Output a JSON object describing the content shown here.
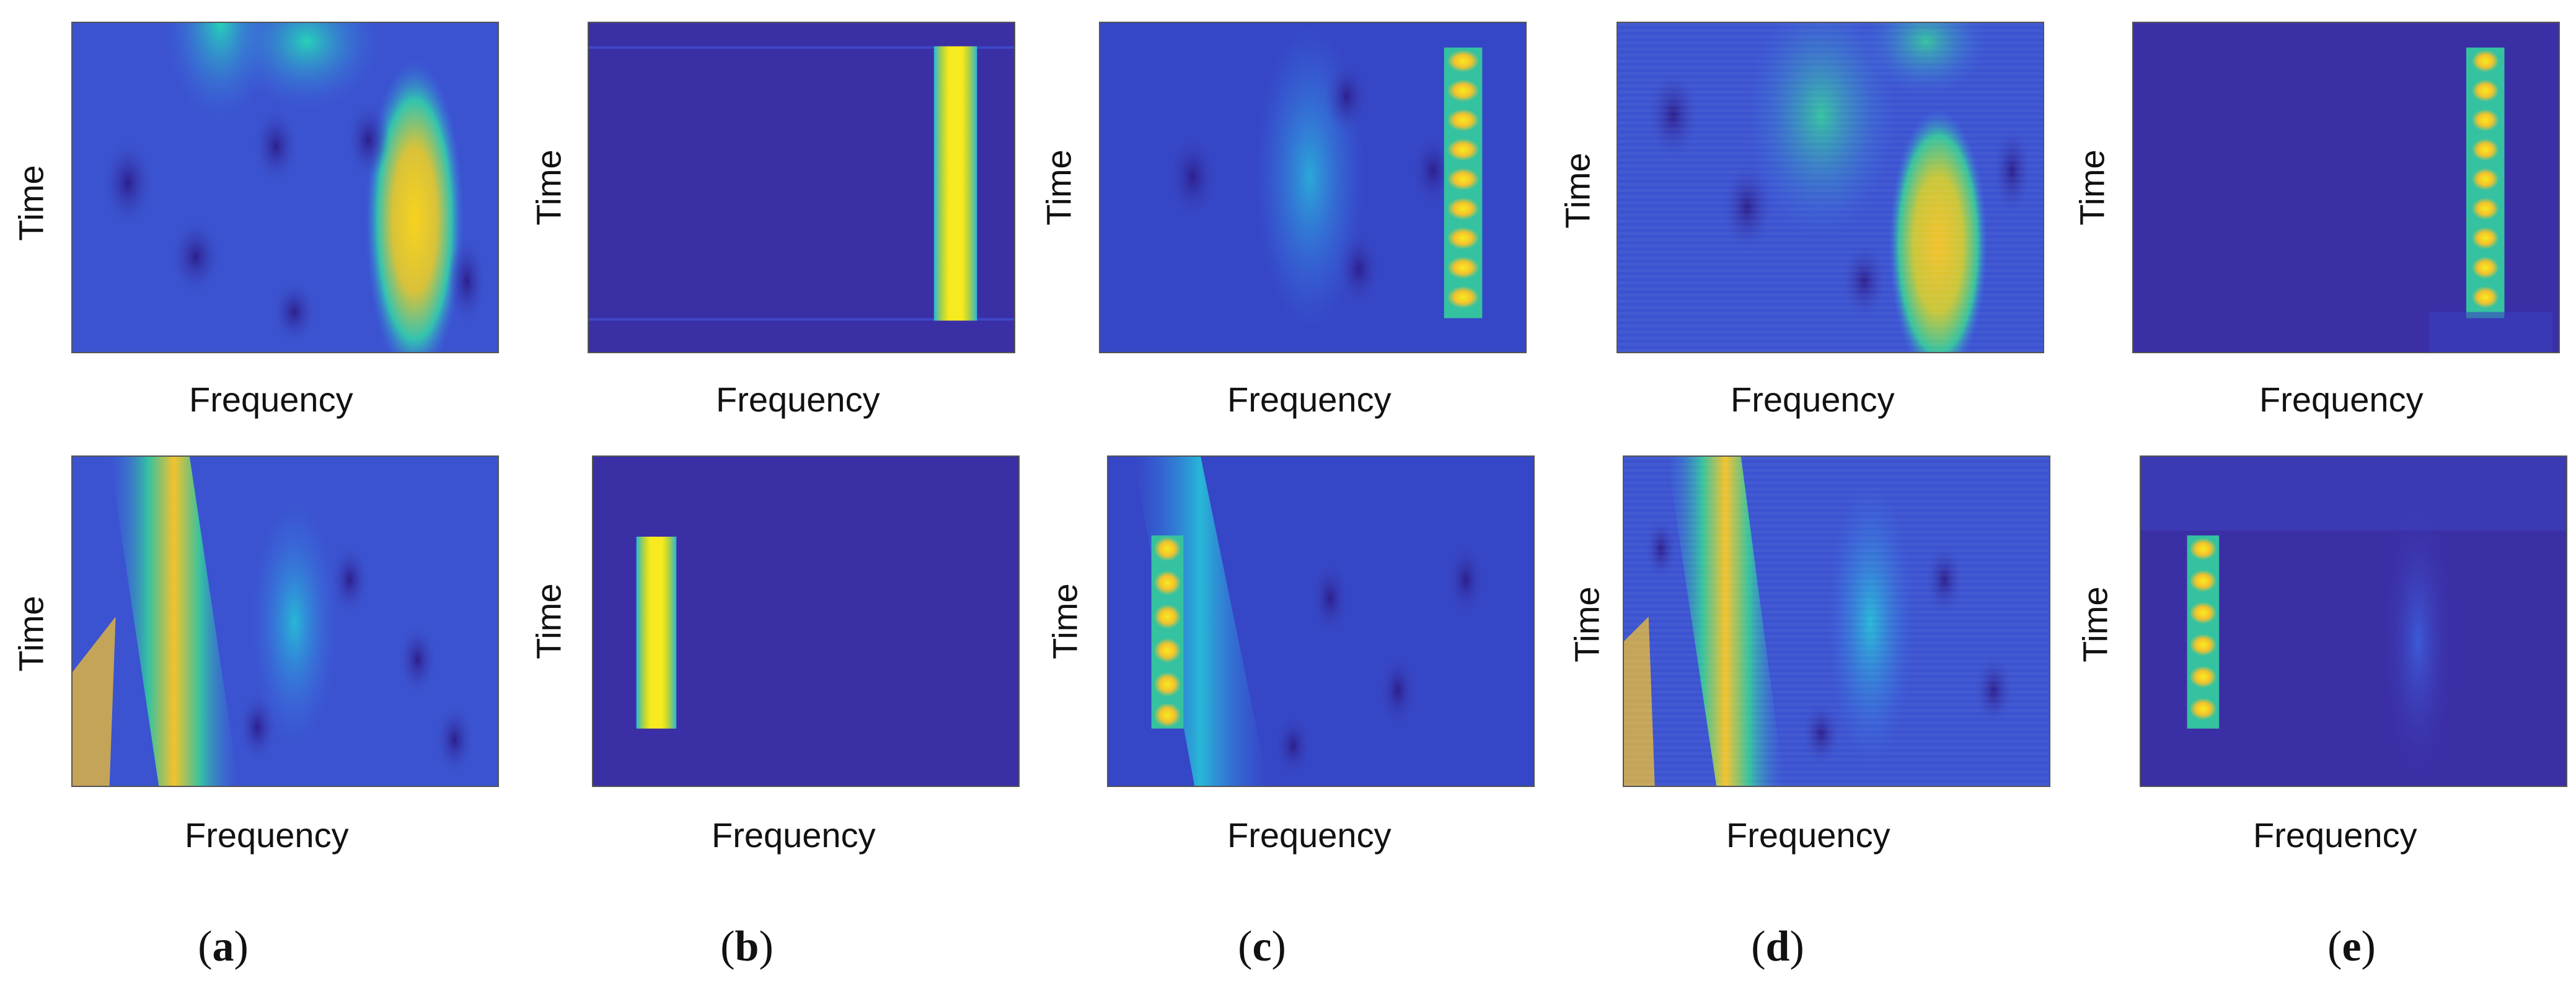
{
  "axes": {
    "xlabel": "Frequency",
    "ylabel": "Time"
  },
  "captions": [
    "a",
    "b",
    "c",
    "d",
    "e"
  ],
  "colors": {
    "background": "#3b2fa6",
    "mid_blue": "#3d6fe6",
    "cyan": "#27b8d6",
    "green_teal": "#35c2a0",
    "yellow": "#f7ea1e",
    "orange": "#f3b72d"
  }
}
